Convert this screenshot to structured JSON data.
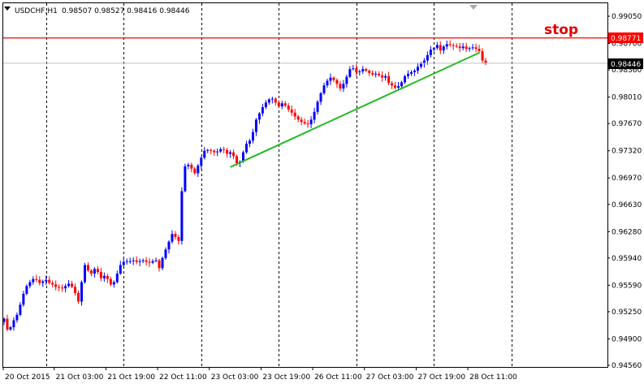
{
  "window": {
    "symbol_label": "USDCHF,H1",
    "ohlc_label": "0.98507 0.98527 0.98416 0.98446",
    "menu_arrow_icon": "triangle-down-icon",
    "scroll_arrow_icon": "triangle-down-icon"
  },
  "colors": {
    "background": "#ffffff",
    "grid": "#000000",
    "bull": "#0000ff",
    "bear": "#ff0000",
    "stop_line": "#ff0000",
    "trend_line": "#22bb22",
    "price_line": "#c0c0c0"
  },
  "annotations": {
    "stop_text": "stop",
    "stop_price": "0.98771",
    "current_price": "0.98446"
  },
  "chart_data": {
    "type": "candlestick",
    "symbol": "USDCHF",
    "timeframe": "H1",
    "y_ticks": [
      "0.99050",
      "0.98700",
      "0.98360",
      "0.98010",
      "0.97670",
      "0.97320",
      "0.96970",
      "0.96630",
      "0.96280",
      "0.95940",
      "0.95590",
      "0.95250",
      "0.94900",
      "0.94560"
    ],
    "ylim": [
      0.9456,
      0.9905
    ],
    "x_ticks": [
      "20 Oct 2015",
      "21 Oct 03:00",
      "21 Oct 19:00",
      "22 Oct 11:00",
      "23 Oct 03:00",
      "23 Oct 19:00",
      "26 Oct 11:00",
      "27 Oct 03:00",
      "27 Oct 19:00",
      "28 Oct 11:00"
    ],
    "x_tick_index": [
      0,
      16,
      32,
      48,
      64,
      80,
      96,
      112,
      128,
      144
    ],
    "vgrid_index": [
      13,
      37,
      61,
      85,
      109,
      133,
      157
    ],
    "stop_level": 0.98771,
    "last_price": 0.98446,
    "trendline": [
      {
        "i": 70,
        "p": 0.9711
      },
      {
        "i": 147,
        "p": 0.9858
      }
    ],
    "closes": [
      0.9516,
      0.9502,
      0.9505,
      0.9514,
      0.9521,
      0.9534,
      0.9548,
      0.9558,
      0.9563,
      0.9567,
      0.9566,
      0.9562,
      0.9564,
      0.9566,
      0.9562,
      0.956,
      0.9557,
      0.9556,
      0.9555,
      0.9558,
      0.9561,
      0.9557,
      0.9549,
      0.9538,
      0.9563,
      0.9585,
      0.9578,
      0.9574,
      0.958,
      0.9576,
      0.9568,
      0.9571,
      0.9567,
      0.956,
      0.9563,
      0.9574,
      0.9585,
      0.9589,
      0.959,
      0.959,
      0.9591,
      0.9589,
      0.959,
      0.9591,
      0.9589,
      0.9588,
      0.959,
      0.9591,
      0.9581,
      0.9594,
      0.9605,
      0.9615,
      0.9625,
      0.9621,
      0.9616,
      0.968,
      0.9712,
      0.9714,
      0.9709,
      0.9703,
      0.9713,
      0.9723,
      0.9732,
      0.9733,
      0.9732,
      0.973,
      0.9731,
      0.9734,
      0.9733,
      0.9728,
      0.973,
      0.9725,
      0.9716,
      0.9718,
      0.973,
      0.9741,
      0.9745,
      0.9756,
      0.9772,
      0.978,
      0.9788,
      0.9794,
      0.9798,
      0.9799,
      0.9794,
      0.9789,
      0.9793,
      0.979,
      0.9785,
      0.9781,
      0.9776,
      0.9772,
      0.9769,
      0.9767,
      0.9766,
      0.9772,
      0.9782,
      0.9795,
      0.9806,
      0.9816,
      0.9822,
      0.9826,
      0.9823,
      0.9818,
      0.9812,
      0.9818,
      0.9827,
      0.9837,
      0.9838,
      0.9833,
      0.9834,
      0.9837,
      0.9835,
      0.9832,
      0.983,
      0.9831,
      0.9829,
      0.9826,
      0.9828,
      0.9819,
      0.9816,
      0.9813,
      0.9815,
      0.982,
      0.9828,
      0.9831,
      0.9833,
      0.9835,
      0.984,
      0.9844,
      0.9848,
      0.9855,
      0.9862,
      0.9864,
      0.9868,
      0.9861,
      0.9866,
      0.9869,
      0.9868,
      0.9867,
      0.9866,
      0.9864,
      0.9866,
      0.9863,
      0.9864,
      0.9865,
      0.9863,
      0.986,
      0.9848,
      0.9844
    ]
  }
}
